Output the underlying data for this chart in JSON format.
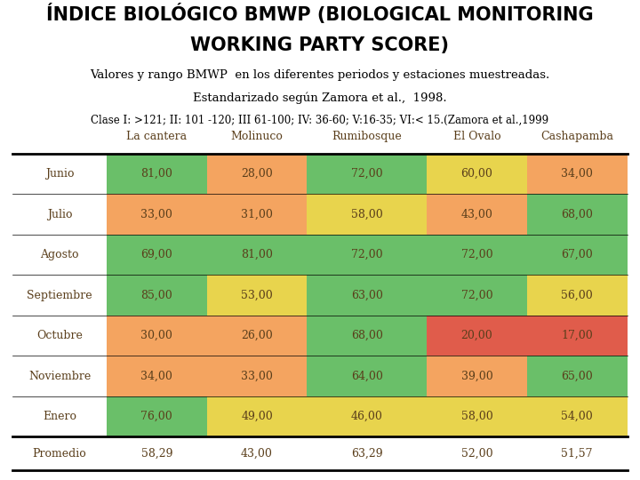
{
  "title_line1": "ÍNDICE BIOLÓGICO BMWP (BIOLOGICAL MONITORING",
  "title_line2": "WORKING PARTY SCORE)",
  "subtitle1": "Valores y rango BMWP  en los diferentes periodos y estaciones muestreadas.",
  "subtitle2": "Estandarizado según Zamora et al.,  1998.",
  "subtitle3": "Clase I: >121; II: 101 -120; III 61-100; IV: 36-60; V:16-35; VI:< 15.(Zamora et al.,1999",
  "col_headers": [
    "La cantera",
    "Molinuco",
    "Rumibosque",
    "El Ovalo",
    "Cashapamba"
  ],
  "row_headers": [
    "Junio",
    "Julio",
    "Agosto",
    "Septiembre",
    "Octubre",
    "Noviembre",
    "Enero",
    "Promedio"
  ],
  "data": [
    [
      81.0,
      28.0,
      72.0,
      60.0,
      34.0
    ],
    [
      33.0,
      31.0,
      58.0,
      43.0,
      68.0
    ],
    [
      69.0,
      81.0,
      72.0,
      72.0,
      67.0
    ],
    [
      85.0,
      53.0,
      63.0,
      72.0,
      56.0
    ],
    [
      30.0,
      26.0,
      68.0,
      20.0,
      17.0
    ],
    [
      34.0,
      33.0,
      64.0,
      39.0,
      65.0
    ],
    [
      76.0,
      49.0,
      46.0,
      58.0,
      54.0
    ],
    [
      58.29,
      43.0,
      63.29,
      52.0,
      51.57
    ]
  ],
  "cell_colors": [
    [
      "#6abf69",
      "#f4a460",
      "#6abf69",
      "#e8d44d",
      "#f4a460"
    ],
    [
      "#f4a460",
      "#f4a460",
      "#e8d44d",
      "#f4a460",
      "#6abf69"
    ],
    [
      "#6abf69",
      "#6abf69",
      "#6abf69",
      "#6abf69",
      "#6abf69"
    ],
    [
      "#6abf69",
      "#e8d44d",
      "#6abf69",
      "#6abf69",
      "#e8d44d"
    ],
    [
      "#f4a460",
      "#f4a460",
      "#6abf69",
      "#e05c4b",
      "#e05c4b"
    ],
    [
      "#f4a460",
      "#f4a460",
      "#6abf69",
      "#f4a460",
      "#6abf69"
    ],
    [
      "#6abf69",
      "#e8d44d",
      "#e8d44d",
      "#e8d44d",
      "#e8d44d"
    ]
  ],
  "text_color": "#5a3e1b",
  "background_color": "#ffffff",
  "title_fontsize": 15,
  "subtitle_fontsize": 9.5,
  "subtitle3_fontsize": 8.5,
  "table_fontsize": 9
}
